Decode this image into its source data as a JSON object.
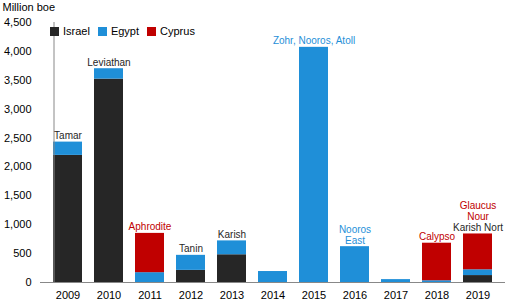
{
  "chart_data": {
    "type": "bar",
    "stacked": true,
    "y_label": "Million boe",
    "categories": [
      "2009",
      "2010",
      "2011",
      "2012",
      "2013",
      "2014",
      "2015",
      "2016",
      "2017",
      "2018",
      "2019"
    ],
    "series": [
      {
        "name": "Israel",
        "color": "#262626",
        "values": [
          2200,
          3520,
          0,
          210,
          480,
          0,
          0,
          0,
          0,
          0,
          120
        ]
      },
      {
        "name": "Egypt",
        "color": "#1f8fd8",
        "values": [
          230,
          180,
          170,
          260,
          240,
          190,
          4070,
          620,
          50,
          30,
          100
        ]
      },
      {
        "name": "Cyprus",
        "color": "#c00000",
        "values": [
          0,
          0,
          680,
          0,
          0,
          0,
          0,
          0,
          0,
          650,
          620
        ]
      }
    ],
    "ylim": [
      0,
      4500
    ],
    "yticks": [
      0,
      500,
      1000,
      1500,
      2000,
      2500,
      3000,
      3500,
      4000,
      4500
    ],
    "legend": "top-left",
    "annotations": [
      {
        "category": "2009",
        "text": "Tamar",
        "series": "Israel"
      },
      {
        "category": "2010",
        "text": "Leviathan",
        "series": "Israel"
      },
      {
        "category": "2011",
        "text": "Aphrodite",
        "series": "Cyprus"
      },
      {
        "category": "2012",
        "text": "Tanin",
        "series": "Israel"
      },
      {
        "category": "2013",
        "text": "Karish",
        "series": "Israel"
      },
      {
        "category": "2015",
        "text": "Zohr, Nooros, Atoll",
        "series": "Egypt"
      },
      {
        "category": "2016",
        "text": "Nooros\nEast",
        "series": "Egypt"
      },
      {
        "category": "2018",
        "text": "Calypso",
        "series": "Cyprus"
      },
      {
        "category": "2019",
        "text": "Karish Nort",
        "series": "Israel"
      },
      {
        "category": "2019",
        "text": "Glaucus\nNour",
        "series": "Cyprus"
      }
    ]
  }
}
